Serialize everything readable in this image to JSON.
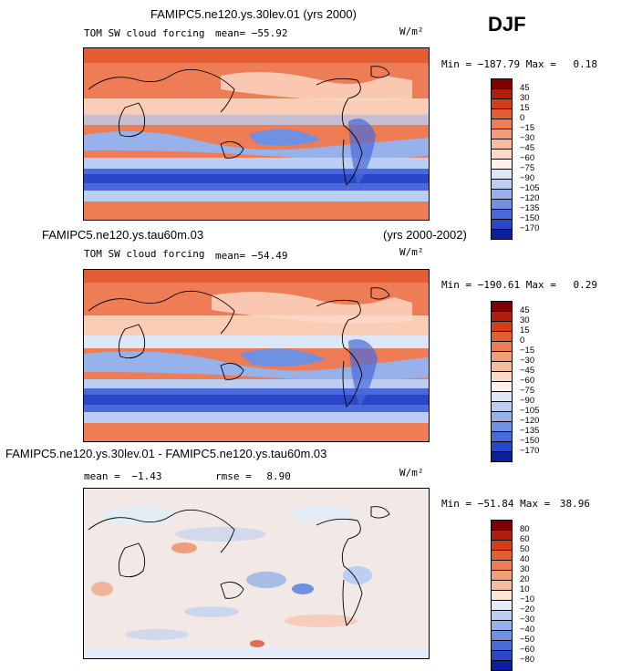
{
  "header": {
    "season": "DJF"
  },
  "panels": [
    {
      "title": "FAMIPC5.ne120.ys.30lev.01 (yrs 2000)",
      "subtitle": "TOM SW cloud forcing",
      "mean_text": "mean= −55.92",
      "units": "W/m²",
      "min_label": "Min =",
      "min_value": "−187.79",
      "max_label": "Max =",
      "max_value": "0.18",
      "colorbar": {
        "labels": [
          "45",
          "30",
          "15",
          "0",
          "−15",
          "−30",
          "−45",
          "−60",
          "−75",
          "−90",
          "−105",
          "−120",
          "−135",
          "−150",
          "−170"
        ],
        "colors": [
          "#7f0000",
          "#b21d0c",
          "#d63c1a",
          "#e35e33",
          "#ee7d55",
          "#f49c78",
          "#f8bb9e",
          "#fcdac8",
          "#fff2e8",
          "#dde7f7",
          "#bccff2",
          "#97b1ea",
          "#7090e2",
          "#4a6adb",
          "#2a46c9",
          "#0d1f9d"
        ]
      }
    },
    {
      "title_left": "FAMIPC5.ne120.ys.tau60m.03",
      "title_right": "(yrs 2000-2002)",
      "subtitle": "TOM SW cloud forcing",
      "mean_text": "mean= −54.49",
      "units": "W/m²",
      "min_label": "Min =",
      "min_value": "−190.61",
      "max_label": "Max =",
      "max_value": "0.29",
      "colorbar": {
        "labels": [
          "45",
          "30",
          "15",
          "0",
          "−15",
          "−30",
          "−45",
          "−60",
          "−75",
          "−90",
          "−105",
          "−120",
          "−135",
          "−150",
          "−170"
        ],
        "colors": [
          "#7f0000",
          "#b21d0c",
          "#d63c1a",
          "#e35e33",
          "#ee7d55",
          "#f49c78",
          "#f8bb9e",
          "#fcdac8",
          "#fff2e8",
          "#dde7f7",
          "#bccff2",
          "#97b1ea",
          "#7090e2",
          "#4a6adb",
          "#2a46c9",
          "#0d1f9d"
        ]
      }
    },
    {
      "title": "FAMIPC5.ne120.ys.30lev.01 - FAMIPC5.ne120.ys.tau60m.03",
      "mean_label": "mean =",
      "mean_value": "−1.43",
      "rmse_label": "rmse =",
      "rmse_value": "8.90",
      "units": "W/m²",
      "min_label": "Min =",
      "min_value": "−51.84",
      "max_label": "Max =",
      "max_value": "38.96",
      "colorbar": {
        "labels": [
          "80",
          "60",
          "50",
          "40",
          "30",
          "20",
          "10",
          "−10",
          "−20",
          "−30",
          "−40",
          "−50",
          "−60",
          "−80"
        ],
        "colors": [
          "#7f0000",
          "#b21d0c",
          "#d63c1a",
          "#e35e33",
          "#ee7d55",
          "#f49c78",
          "#f8bb9e",
          "#fde6d8",
          "#e4ecf8",
          "#bccff2",
          "#97b1ea",
          "#7090e2",
          "#4a6adb",
          "#2a46c9",
          "#0d1f9d"
        ]
      }
    }
  ],
  "chart_data": [
    {
      "type": "heatmap",
      "title": "FAMIPC5.ne120.ys.30lev.01 (yrs 2000)",
      "variable": "TOM SW cloud forcing",
      "units": "W/m²",
      "season": "DJF",
      "mean": -55.92,
      "min": -187.79,
      "max": 0.18,
      "levels": [
        45,
        30,
        15,
        0,
        -15,
        -30,
        -45,
        -60,
        -75,
        -90,
        -105,
        -120,
        -135,
        -150,
        -170
      ]
    },
    {
      "type": "heatmap",
      "title": "FAMIPC5.ne120.ys.tau60m.03 (yrs 2000-2002)",
      "variable": "TOM SW cloud forcing",
      "units": "W/m²",
      "season": "DJF",
      "mean": -54.49,
      "min": -190.61,
      "max": 0.29,
      "levels": [
        45,
        30,
        15,
        0,
        -15,
        -30,
        -45,
        -60,
        -75,
        -90,
        -105,
        -120,
        -135,
        -150,
        -170
      ]
    },
    {
      "type": "heatmap",
      "title": "FAMIPC5.ne120.ys.30lev.01 - FAMIPC5.ne120.ys.tau60m.03",
      "units": "W/m²",
      "mean": -1.43,
      "rmse": 8.9,
      "min": -51.84,
      "max": 38.96,
      "levels": [
        80,
        60,
        50,
        40,
        30,
        20,
        10,
        -10,
        -20,
        -30,
        -40,
        -50,
        -60,
        -80
      ]
    }
  ]
}
